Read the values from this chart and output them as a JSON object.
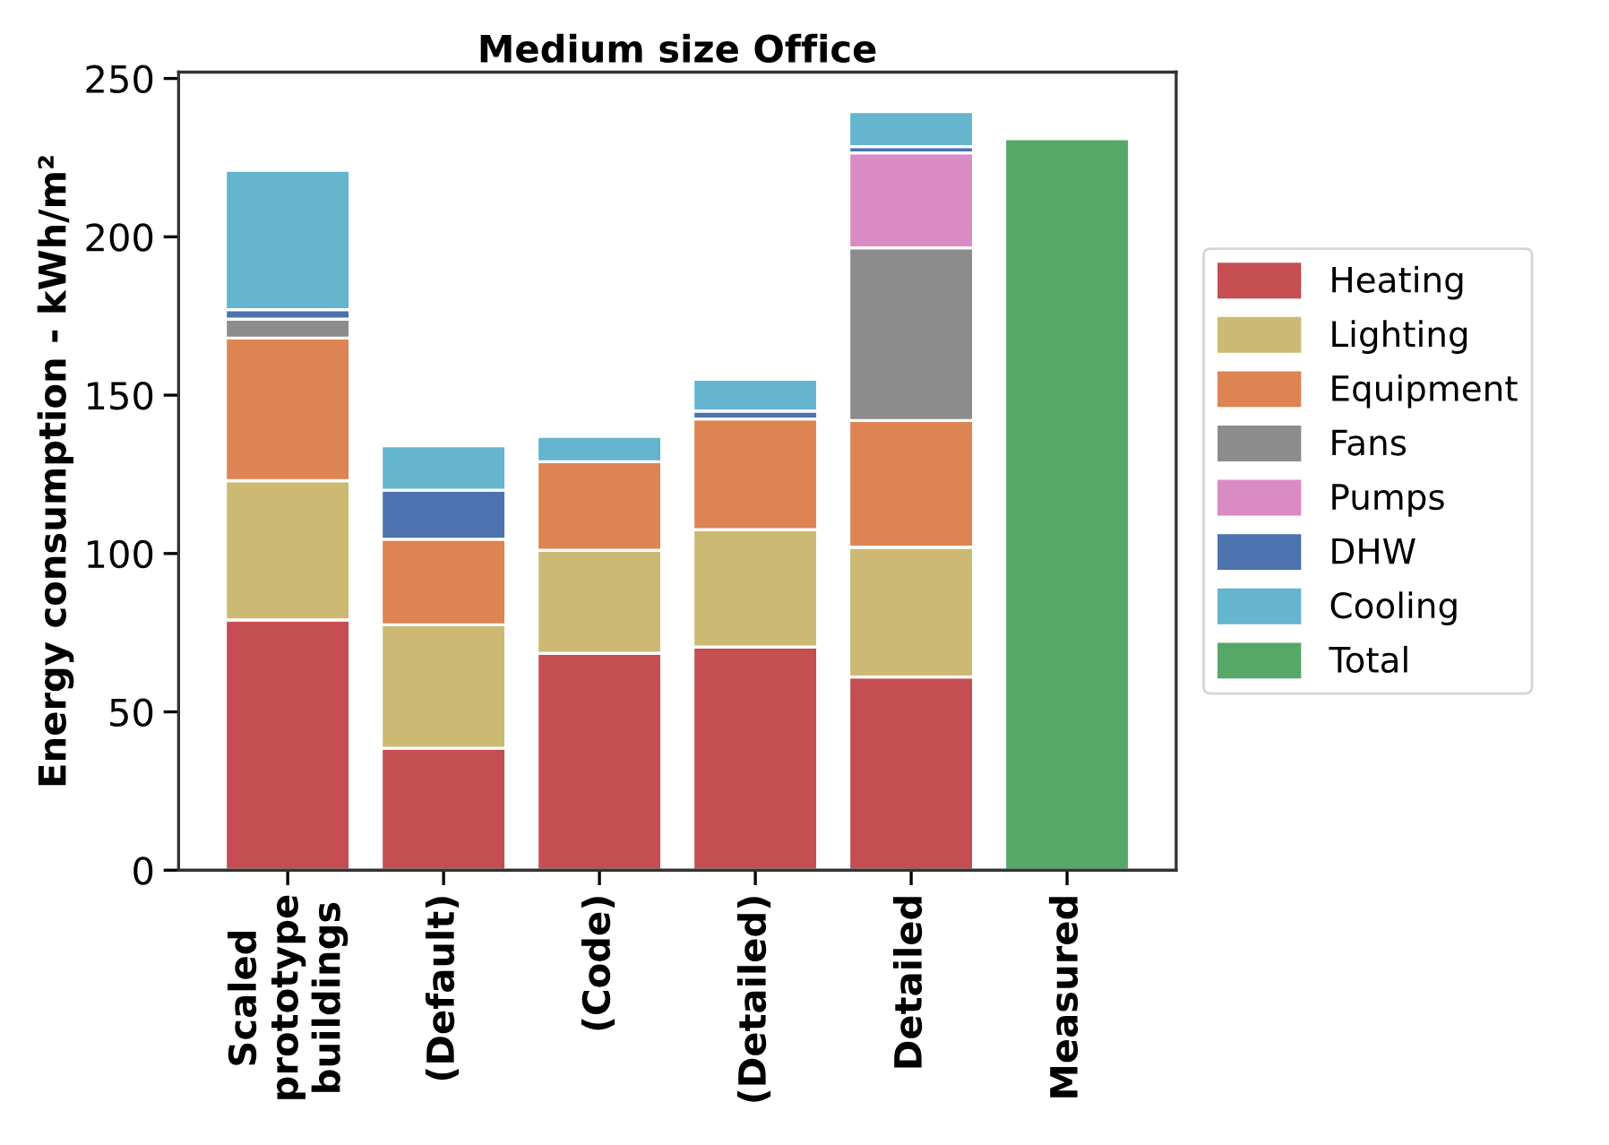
{
  "chart_data": {
    "type": "bar",
    "title": "Medium size Office",
    "ylabel": "Energy consumption - kWh/m²",
    "categories": [
      "Scaled\nprototype\nbuildings",
      "(Default)",
      "(Code)",
      "(Detailed)",
      "Detailed",
      "Measured"
    ],
    "stacked": true,
    "ylim": [
      0,
      252
    ],
    "yticks": [
      0,
      50,
      100,
      150,
      200,
      250
    ],
    "grid": false,
    "legend": "right",
    "series": [
      {
        "name": "Heating",
        "color": "#c44e52",
        "values": [
          79,
          38.5,
          68.5,
          70.5,
          61,
          null
        ]
      },
      {
        "name": "Lighting",
        "color": "#ccb974",
        "values": [
          44,
          39,
          32.5,
          37,
          41,
          null
        ]
      },
      {
        "name": "Equipment",
        "color": "#dd8452",
        "values": [
          45,
          27,
          28,
          35,
          40,
          null
        ]
      },
      {
        "name": "Fans",
        "color": "#8c8c8c",
        "values": [
          6,
          null,
          null,
          null,
          54.5,
          null
        ]
      },
      {
        "name": "Pumps",
        "color": "#da8bc3",
        "values": [
          null,
          null,
          null,
          null,
          30,
          null
        ]
      },
      {
        "name": "DHW",
        "color": "#4c72b0",
        "values": [
          3,
          15.5,
          null,
          2.5,
          2,
          null
        ]
      },
      {
        "name": "Cooling",
        "color": "#64b5cd",
        "values": [
          44,
          14,
          8,
          10,
          11,
          null
        ]
      },
      {
        "name": "Total",
        "color": "#55a868",
        "values": [
          null,
          null,
          null,
          null,
          null,
          231
        ]
      }
    ]
  }
}
